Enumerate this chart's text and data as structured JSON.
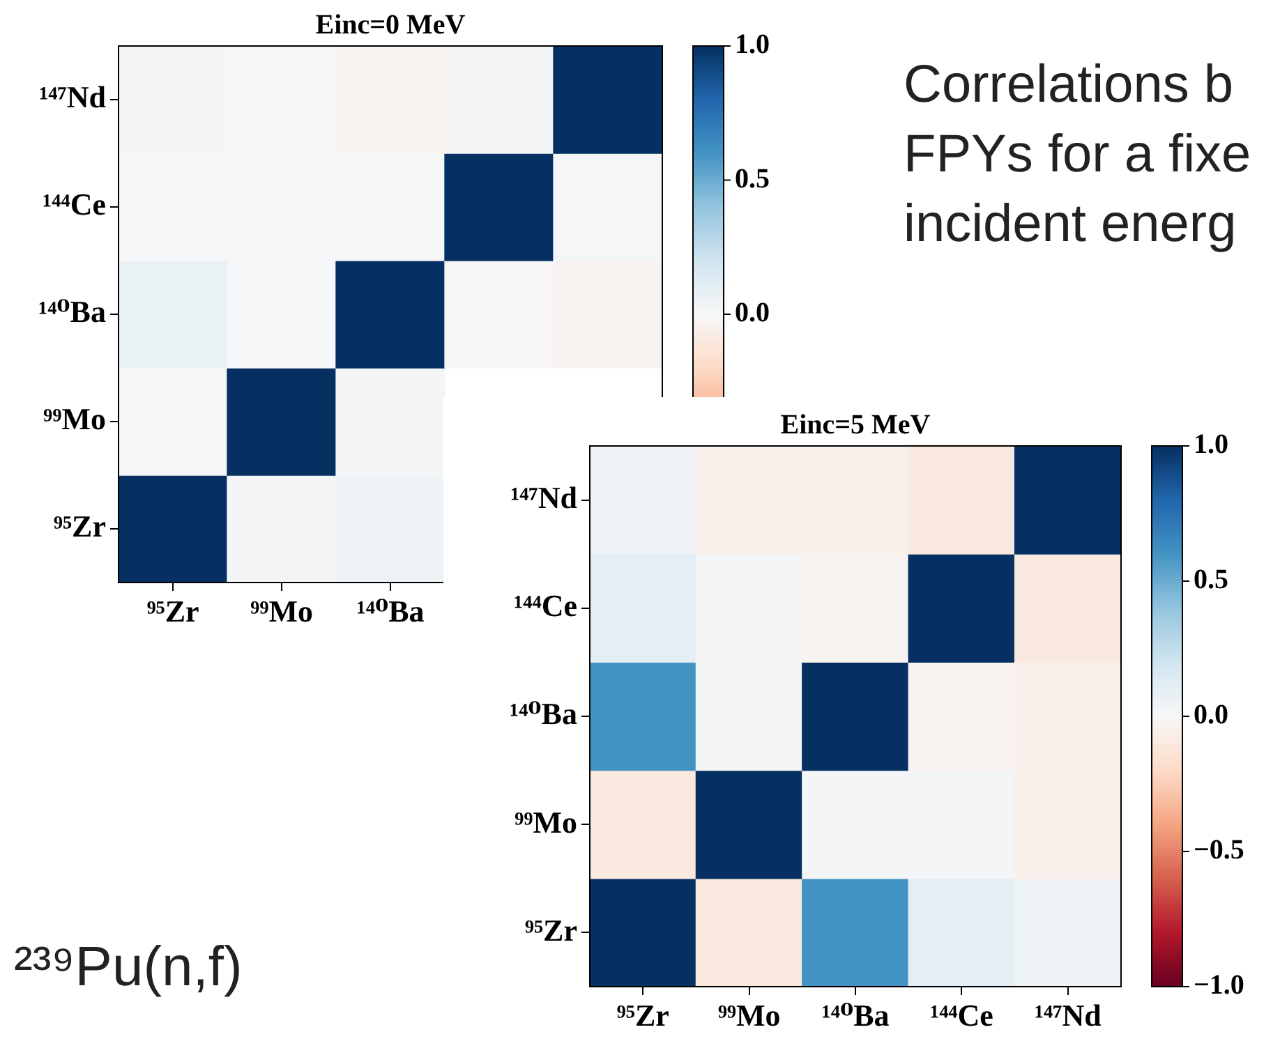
{
  "chart_data": [
    {
      "type": "heatmap",
      "title": "Einc=0 MeV",
      "categories": [
        "⁹⁵Zr",
        "⁹⁹Mo",
        "¹⁴⁰Ba",
        null,
        null
      ],
      "y_categories": [
        "¹⁴⁷Nd",
        "¹⁴⁴Ce",
        "¹⁴⁰Ba",
        "⁹⁹Mo",
        "⁹⁵Zr"
      ],
      "cells": [
        [
          0.02,
          0.01,
          -0.02,
          0.02,
          1
        ],
        [
          0.01,
          0.01,
          0.01,
          1,
          0.01
        ],
        [
          0.07,
          0.01,
          1,
          0.0,
          -0.03
        ],
        [
          0.01,
          1,
          0.02,
          null,
          null
        ],
        [
          1,
          0.02,
          0.05,
          null,
          null
        ]
      ],
      "clim": [
        -1,
        1
      ],
      "cticks": [
        {
          "value": 0,
          "label": "0.0"
        },
        {
          "value": 0.5,
          "label": "0.5"
        },
        {
          "value": 1,
          "label": "1.0"
        }
      ],
      "annotations": [
        "Correlations b",
        "FPYs for a fixe",
        "incident energ"
      ]
    },
    {
      "type": "heatmap",
      "title": "Einc=5 MeV",
      "categories": [
        "⁹⁵Zr",
        "⁹⁹Mo",
        "¹⁴⁰Ba",
        "¹⁴⁴Ce",
        "¹⁴⁷Nd"
      ],
      "y_categories": [
        "¹⁴⁷Nd",
        "¹⁴⁴Ce",
        "¹⁴⁰Ba",
        "⁹⁹Mo",
        "⁹⁵Zr"
      ],
      "cells": [
        [
          0.05,
          -0.05,
          -0.05,
          -0.1,
          1
        ],
        [
          0.1,
          0.02,
          -0.03,
          1,
          -0.1
        ],
        [
          0.6,
          0.02,
          1,
          -0.03,
          -0.05
        ],
        [
          -0.1,
          1,
          0.02,
          0.02,
          -0.05
        ],
        [
          1,
          -0.1,
          0.6,
          0.1,
          0.05
        ]
      ],
      "clim": [
        -1,
        1
      ],
      "cticks": [
        {
          "value": -1,
          "label": "−1.0"
        },
        {
          "value": -0.5,
          "label": "−0.5"
        },
        {
          "value": 0,
          "label": "0.0"
        },
        {
          "value": 0.5,
          "label": "0.5"
        },
        {
          "value": 1,
          "label": "1.0"
        }
      ],
      "annotations": [
        "²³⁹Pu(n,f)"
      ]
    }
  ]
}
